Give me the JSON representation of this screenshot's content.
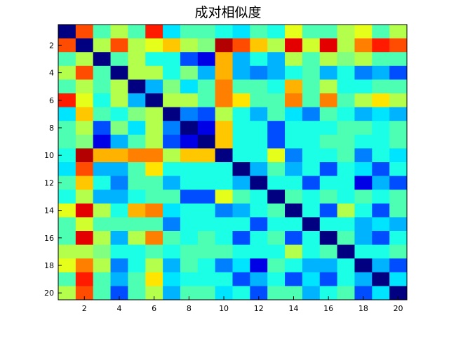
{
  "chart_data": {
    "type": "heatmap",
    "title": "成对相似度",
    "xlabel": "",
    "ylabel": "",
    "rows": 20,
    "cols": 20,
    "xlim": [
      0.5,
      20.5
    ],
    "ylim": [
      0.5,
      20.5
    ],
    "y_direction": "top-to-bottom",
    "x_ticks": [
      2,
      4,
      6,
      8,
      10,
      12,
      14,
      16,
      18,
      20
    ],
    "y_ticks": [
      2,
      4,
      6,
      8,
      10,
      12,
      14,
      16,
      18,
      20
    ],
    "colormap": "jet",
    "value_range": [
      0,
      1
    ],
    "grid": false,
    "legend": "none",
    "values": [
      [
        0.0,
        0.8,
        0.45,
        0.55,
        0.45,
        0.85,
        0.35,
        0.45,
        0.45,
        0.4,
        0.35,
        0.45,
        0.4,
        0.6,
        0.45,
        0.45,
        0.55,
        0.6,
        0.45,
        0.55
      ],
      [
        0.8,
        0.0,
        0.55,
        0.8,
        0.55,
        0.6,
        0.68,
        0.55,
        0.5,
        0.95,
        0.8,
        0.68,
        0.55,
        0.9,
        0.58,
        0.9,
        0.55,
        0.75,
        0.85,
        0.8
      ],
      [
        0.45,
        0.55,
        0.0,
        0.45,
        0.55,
        0.4,
        0.4,
        0.2,
        0.1,
        0.7,
        0.3,
        0.4,
        0.3,
        0.55,
        0.45,
        0.55,
        0.5,
        0.55,
        0.45,
        0.45
      ],
      [
        0.55,
        0.8,
        0.45,
        0.0,
        0.55,
        0.55,
        0.4,
        0.5,
        0.3,
        0.7,
        0.3,
        0.25,
        0.3,
        0.4,
        0.45,
        0.3,
        0.4,
        0.25,
        0.3,
        0.2
      ],
      [
        0.45,
        0.55,
        0.45,
        0.55,
        0.0,
        0.3,
        0.5,
        0.35,
        0.45,
        0.75,
        0.45,
        0.45,
        0.4,
        0.7,
        0.45,
        0.55,
        0.4,
        0.4,
        0.45,
        0.45
      ],
      [
        0.85,
        0.6,
        0.4,
        0.55,
        0.3,
        0.0,
        0.55,
        0.55,
        0.45,
        0.75,
        0.65,
        0.45,
        0.45,
        0.75,
        0.45,
        0.75,
        0.45,
        0.55,
        0.65,
        0.55
      ],
      [
        0.35,
        0.68,
        0.45,
        0.4,
        0.5,
        0.55,
        0.0,
        0.25,
        0.2,
        0.55,
        0.4,
        0.3,
        0.45,
        0.35,
        0.25,
        0.45,
        0.4,
        0.3,
        0.35,
        0.3
      ],
      [
        0.45,
        0.55,
        0.2,
        0.5,
        0.35,
        0.55,
        0.25,
        0.0,
        0.1,
        0.68,
        0.4,
        0.4,
        0.2,
        0.4,
        0.4,
        0.4,
        0.45,
        0.45,
        0.4,
        0.45
      ],
      [
        0.45,
        0.5,
        0.1,
        0.3,
        0.45,
        0.55,
        0.2,
        0.1,
        0.0,
        0.68,
        0.4,
        0.4,
        0.2,
        0.4,
        0.4,
        0.45,
        0.45,
        0.4,
        0.4,
        0.45
      ],
      [
        0.4,
        0.95,
        0.7,
        0.7,
        0.75,
        0.75,
        0.55,
        0.68,
        0.68,
        0.0,
        0.4,
        0.4,
        0.6,
        0.25,
        0.4,
        0.4,
        0.45,
        0.25,
        0.4,
        0.35
      ],
      [
        0.35,
        0.8,
        0.3,
        0.3,
        0.45,
        0.65,
        0.4,
        0.4,
        0.4,
        0.4,
        0.0,
        0.3,
        0.45,
        0.3,
        0.4,
        0.2,
        0.4,
        0.35,
        0.2,
        0.4
      ],
      [
        0.45,
        0.68,
        0.4,
        0.25,
        0.45,
        0.45,
        0.3,
        0.4,
        0.4,
        0.4,
        0.3,
        0.0,
        0.4,
        0.4,
        0.2,
        0.4,
        0.4,
        0.1,
        0.3,
        0.2
      ],
      [
        0.4,
        0.55,
        0.3,
        0.3,
        0.4,
        0.45,
        0.45,
        0.2,
        0.2,
        0.6,
        0.45,
        0.4,
        0.0,
        0.45,
        0.4,
        0.45,
        0.4,
        0.45,
        0.4,
        0.45
      ],
      [
        0.6,
        0.9,
        0.55,
        0.4,
        0.7,
        0.75,
        0.35,
        0.4,
        0.4,
        0.25,
        0.3,
        0.4,
        0.45,
        0.0,
        0.4,
        0.2,
        0.55,
        0.4,
        0.2,
        0.45
      ],
      [
        0.45,
        0.58,
        0.45,
        0.45,
        0.45,
        0.45,
        0.25,
        0.4,
        0.4,
        0.4,
        0.4,
        0.2,
        0.4,
        0.4,
        0.0,
        0.4,
        0.4,
        0.3,
        0.35,
        0.3
      ],
      [
        0.45,
        0.9,
        0.55,
        0.3,
        0.55,
        0.75,
        0.45,
        0.4,
        0.45,
        0.4,
        0.2,
        0.4,
        0.45,
        0.2,
        0.4,
        0.0,
        0.45,
        0.3,
        0.2,
        0.4
      ],
      [
        0.55,
        0.55,
        0.5,
        0.4,
        0.4,
        0.45,
        0.4,
        0.45,
        0.45,
        0.45,
        0.4,
        0.4,
        0.4,
        0.55,
        0.4,
        0.45,
        0.0,
        0.4,
        0.4,
        0.45
      ],
      [
        0.6,
        0.75,
        0.55,
        0.25,
        0.4,
        0.55,
        0.3,
        0.45,
        0.4,
        0.25,
        0.35,
        0.1,
        0.45,
        0.4,
        0.3,
        0.3,
        0.4,
        0.0,
        0.3,
        0.2
      ],
      [
        0.45,
        0.85,
        0.45,
        0.3,
        0.45,
        0.65,
        0.35,
        0.4,
        0.4,
        0.4,
        0.2,
        0.3,
        0.4,
        0.2,
        0.35,
        0.2,
        0.4,
        0.3,
        0.0,
        0.35
      ],
      [
        0.55,
        0.8,
        0.45,
        0.2,
        0.45,
        0.55,
        0.3,
        0.45,
        0.45,
        0.35,
        0.4,
        0.2,
        0.45,
        0.45,
        0.3,
        0.4,
        0.45,
        0.2,
        0.35,
        0.0
      ]
    ]
  }
}
